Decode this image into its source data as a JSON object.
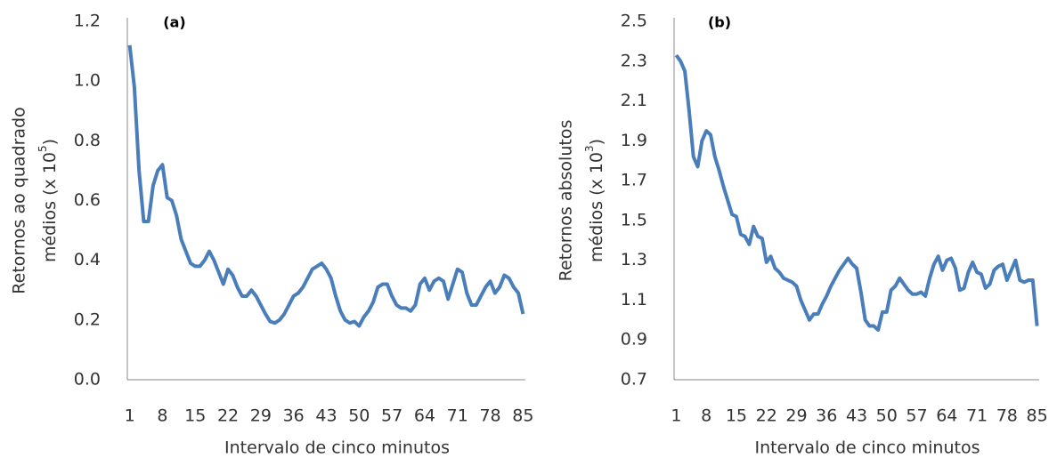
{
  "chart_data": [
    {
      "type": "line",
      "title": "(a)",
      "ylabel": {
        "line1": "Retornos ao quadrado",
        "line2": "médios  (x 10",
        "superscript": "5",
        "suffix": ")"
      },
      "xlabel": "Intervalo de cinco minutos",
      "x": [
        1,
        2,
        3,
        4,
        5,
        6,
        7,
        8,
        9,
        10,
        11,
        12,
        13,
        14,
        15,
        16,
        17,
        18,
        19,
        20,
        21,
        22,
        23,
        24,
        25,
        26,
        27,
        28,
        29,
        30,
        31,
        32,
        33,
        34,
        35,
        36,
        37,
        38,
        39,
        40,
        41,
        42,
        43,
        44,
        45,
        46,
        47,
        48,
        49,
        50,
        51,
        52,
        53,
        54,
        55,
        56,
        57,
        58,
        59,
        60,
        61,
        62,
        63,
        64,
        65,
        66,
        67,
        68,
        69,
        70,
        71,
        72,
        73,
        74,
        75,
        76,
        77,
        78,
        79,
        80,
        81,
        82,
        83,
        84,
        85
      ],
      "series": [
        {
          "color": "#4a7ebb",
          "values": [
            1.12,
            0.98,
            0.7,
            0.53,
            0.53,
            0.65,
            0.7,
            0.72,
            0.61,
            0.6,
            0.55,
            0.47,
            0.43,
            0.39,
            0.38,
            0.38,
            0.4,
            0.43,
            0.4,
            0.36,
            0.32,
            0.37,
            0.35,
            0.31,
            0.28,
            0.28,
            0.3,
            0.28,
            0.25,
            0.22,
            0.195,
            0.19,
            0.2,
            0.22,
            0.25,
            0.28,
            0.29,
            0.31,
            0.34,
            0.37,
            0.38,
            0.39,
            0.37,
            0.34,
            0.28,
            0.23,
            0.2,
            0.19,
            0.195,
            0.18,
            0.21,
            0.23,
            0.26,
            0.31,
            0.32,
            0.32,
            0.28,
            0.25,
            0.24,
            0.24,
            0.23,
            0.25,
            0.32,
            0.34,
            0.3,
            0.33,
            0.34,
            0.33,
            0.27,
            0.32,
            0.37,
            0.36,
            0.29,
            0.25,
            0.25,
            0.28,
            0.31,
            0.33,
            0.29,
            0.31,
            0.35,
            0.34,
            0.31,
            0.29,
            0.22
          ]
        }
      ],
      "xlim": [
        0.5,
        85.5
      ],
      "xticks": [
        1,
        8,
        15,
        22,
        29,
        36,
        43,
        50,
        57,
        64,
        71,
        78,
        85
      ],
      "ylim": [
        0,
        1.2
      ],
      "yticks": [
        {
          "value": 0,
          "label": "0.0"
        },
        0.2,
        0.4,
        0.6,
        0.8,
        {
          "value": 1,
          "label": "1.0"
        },
        1.2
      ]
    },
    {
      "type": "line",
      "title": "(b)",
      "ylabel": {
        "line1": "Retornos absolutos",
        "line2": "médios  (x 10",
        "superscript": "3",
        "suffix": ")"
      },
      "xlabel": "Intervalo de cinco minutos",
      "x": [
        1,
        2,
        3,
        4,
        5,
        6,
        7,
        8,
        9,
        10,
        11,
        12,
        13,
        14,
        15,
        16,
        17,
        18,
        19,
        20,
        21,
        22,
        23,
        24,
        25,
        26,
        27,
        28,
        29,
        30,
        31,
        32,
        33,
        34,
        35,
        36,
        37,
        38,
        39,
        40,
        41,
        42,
        43,
        44,
        45,
        46,
        47,
        48,
        49,
        50,
        51,
        52,
        53,
        54,
        55,
        56,
        57,
        58,
        59,
        60,
        61,
        62,
        63,
        64,
        65,
        66,
        67,
        68,
        69,
        70,
        71,
        72,
        73,
        74,
        75,
        76,
        77,
        78,
        79,
        80,
        81,
        82,
        83,
        84,
        85
      ],
      "series": [
        {
          "color": "#4a7ebb",
          "values": [
            2.33,
            2.3,
            2.25,
            2.05,
            1.82,
            1.77,
            1.9,
            1.95,
            1.93,
            1.82,
            1.75,
            1.67,
            1.6,
            1.53,
            1.52,
            1.43,
            1.42,
            1.38,
            1.47,
            1.42,
            1.41,
            1.29,
            1.32,
            1.26,
            1.24,
            1.21,
            1.2,
            1.19,
            1.17,
            1.1,
            1.05,
            1.0,
            1.03,
            1.03,
            1.08,
            1.12,
            1.17,
            1.21,
            1.25,
            1.28,
            1.31,
            1.28,
            1.26,
            1.14,
            1.0,
            0.97,
            0.97,
            0.95,
            1.04,
            1.04,
            1.15,
            1.17,
            1.21,
            1.18,
            1.15,
            1.13,
            1.13,
            1.14,
            1.12,
            1.21,
            1.28,
            1.32,
            1.25,
            1.3,
            1.31,
            1.26,
            1.15,
            1.16,
            1.24,
            1.29,
            1.24,
            1.23,
            1.16,
            1.18,
            1.25,
            1.27,
            1.28,
            1.2,
            1.25,
            1.3,
            1.2,
            1.19,
            1.2,
            1.2,
            0.97
          ]
        }
      ],
      "xlim": [
        0.5,
        85.5
      ],
      "xticks": [
        1,
        8,
        15,
        22,
        29,
        36,
        43,
        50,
        57,
        64,
        71,
        78,
        85
      ],
      "ylim": [
        0.7,
        2.5
      ],
      "yticks": [
        0.7,
        0.9,
        1.1,
        1.3,
        1.5,
        1.7,
        1.9,
        2.1,
        2.3,
        2.5
      ]
    }
  ]
}
